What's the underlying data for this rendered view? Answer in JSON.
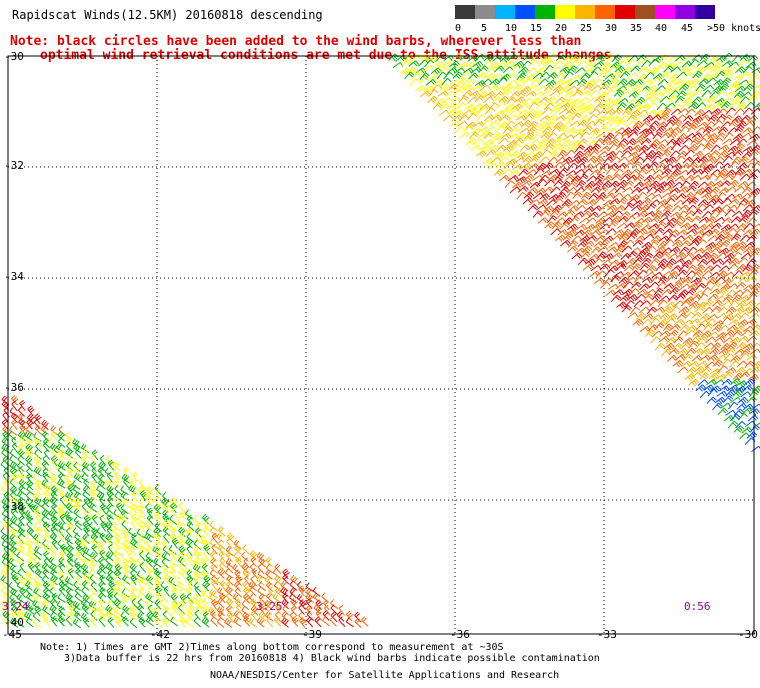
{
  "title": "Rapidscat Winds(12.5KM) 20160818 descending",
  "note_line1": "Note: black circles have been added to the wind barbs, wherever less than",
  "note_line2": "optimal wind retrieval conditions are met due to the ISS attitude changes.",
  "legend": {
    "labels": [
      "0",
      "5",
      "10",
      "15",
      "20",
      "25",
      "30",
      "35",
      "40",
      "45",
      ">50 knots"
    ],
    "colors": [
      "#3a3a3a",
      "#8c8c8c",
      "#00b4ff",
      "#0050ff",
      "#00b400",
      "#ffff00",
      "#ffb400",
      "#ff6400",
      "#e00000",
      "#a05020",
      "#ff00ff",
      "#9000e0",
      "#3000a0"
    ]
  },
  "lat_labels": [
    "-30",
    "-32",
    "-34",
    "-36",
    "-38",
    "-40"
  ],
  "lon_labels": [
    "-45",
    "-42",
    "-39",
    "-36",
    "-33",
    "-30"
  ],
  "time_labels": [
    "3:24",
    "3:25",
    "0:56"
  ],
  "footer": {
    "line1": "Note: 1) Times are GMT 2)Times along bottom correspond to measurement at ~30S",
    "line2": "3)Data buffer is 22 hrs from 20160818 4) Black wind barbs indicate possible contamination",
    "line3": "NOAA/NESDIS/Center for Satellite Applications and Research"
  }
}
